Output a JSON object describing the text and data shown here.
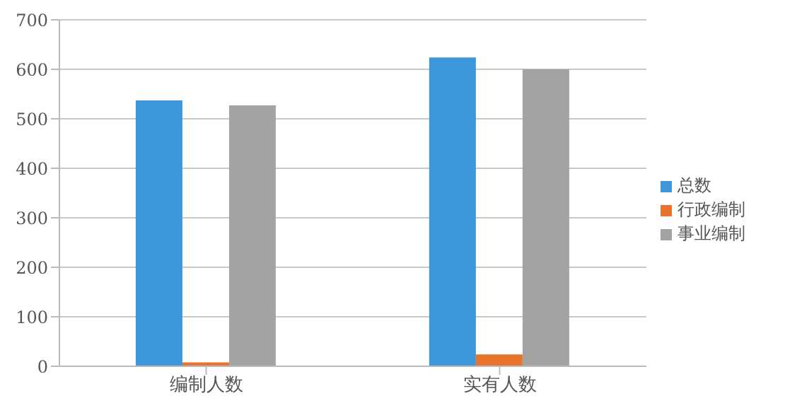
{
  "chart_data": {
    "type": "bar",
    "categories": [
      "编制人数",
      "实有人数"
    ],
    "series": [
      {
        "name": "总数",
        "color": "#3f97db",
        "values": [
          537,
          624
        ]
      },
      {
        "name": "行政编制",
        "color": "#e8732a",
        "values": [
          8,
          24
        ]
      },
      {
        "name": "事业编制",
        "color": "#a3a3a3",
        "values": [
          527,
          600
        ]
      }
    ],
    "ylim": [
      0,
      700
    ],
    "yticks": [
      0,
      100,
      200,
      300,
      400,
      500,
      600,
      700
    ],
    "grid": "y",
    "legend": "right"
  }
}
